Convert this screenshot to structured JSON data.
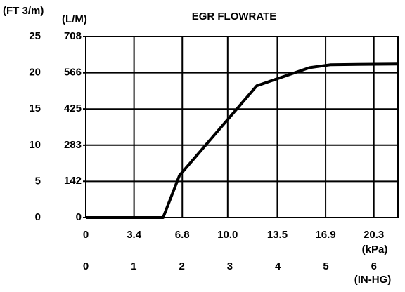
{
  "chart_data": {
    "type": "line",
    "title": "EGR FLOWRATE",
    "y_label": "(FT 3/m)",
    "y2_label": "(L/M)",
    "x2_label": "(kPa)",
    "x_label": "(IN-HG)",
    "x": [
      0,
      1.61,
      1.95,
      3.56,
      4.66,
      5.1,
      6.5
    ],
    "values": [
      0,
      0,
      5.8,
      18.2,
      20.7,
      21.1,
      21.2
    ],
    "color": "#000000",
    "xlim": [
      0,
      6.5
    ],
    "xticks": [
      0,
      1,
      2,
      3,
      4,
      5,
      6
    ],
    "x2lim": [
      0,
      22.0
    ],
    "x2ticks": [
      0,
      3.4,
      6.8,
      {
        "value": 10,
        "label": "10.0"
      },
      13.5,
      16.9,
      20.3
    ],
    "ylim": [
      0,
      25
    ],
    "yticks": [
      0,
      5,
      10,
      15,
      20,
      25
    ],
    "y2lim": [
      0,
      708
    ],
    "y2ticks": [
      0,
      142,
      283,
      425,
      566,
      708
    ],
    "grid": true
  }
}
